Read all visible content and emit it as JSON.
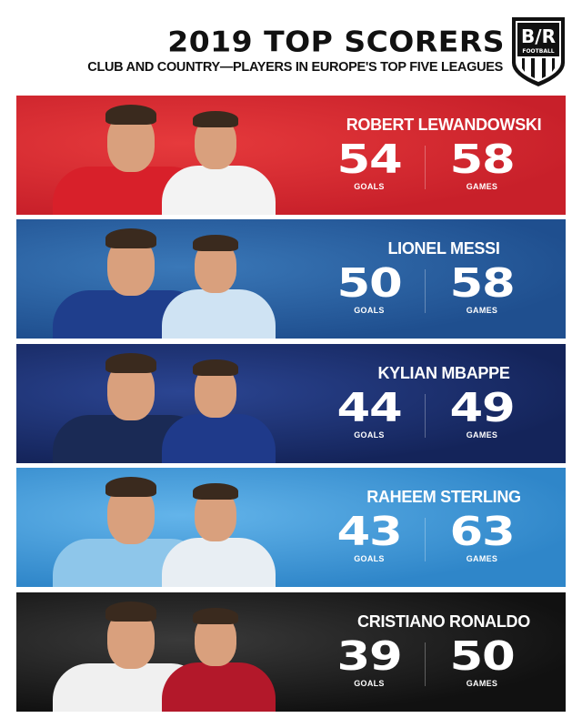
{
  "header": {
    "title": "2019 TOP SCORERS",
    "subtitle": "CLUB AND COUNTRY—PLAYERS IN EUROPE'S TOP FIVE LEAGUES"
  },
  "logo": {
    "text_top": "B/R",
    "text_bottom": "FOOTBALL"
  },
  "stat_labels": {
    "goals": "GOALS",
    "games": "GAMES"
  },
  "players": [
    {
      "name": "ROBERT LEWANDOWSKI",
      "goals": "54",
      "games": "58",
      "color": "#c8202a",
      "color_light": "#e63a3c",
      "club_kit": "#d8202a",
      "country_kit": "#f3f3f3"
    },
    {
      "name": "LIONEL MESSI",
      "goals": "50",
      "games": "58",
      "color": "#1f4f8f",
      "color_light": "#3a78b8",
      "club_kit": "#1f3e8c",
      "country_kit": "#cfe3f3"
    },
    {
      "name": "KYLIAN MBAPPE",
      "goals": "44",
      "games": "49",
      "color": "#14245a",
      "color_light": "#2b4592",
      "club_kit": "#1a2a55",
      "country_kit": "#1f3a8a"
    },
    {
      "name": "RAHEEM STERLING",
      "goals": "43",
      "games": "63",
      "color": "#2f86c9",
      "color_light": "#63b4ea",
      "club_kit": "#8ec6ea",
      "country_kit": "#e8eef3"
    },
    {
      "name": "CRISTIANO RONALDO",
      "goals": "39",
      "games": "50",
      "color": "#111111",
      "color_light": "#3a3a3a",
      "club_kit": "#f0f0f0",
      "country_kit": "#b3182a"
    }
  ]
}
